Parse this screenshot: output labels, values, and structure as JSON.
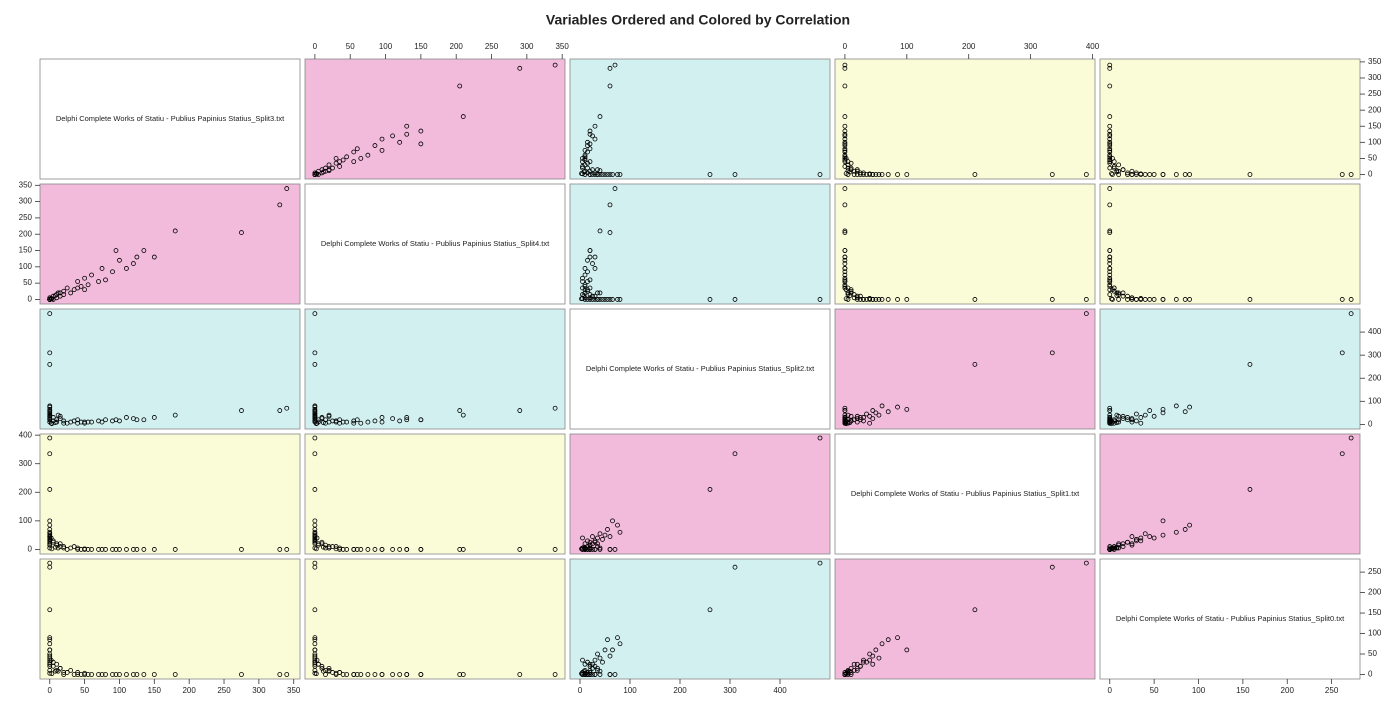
{
  "chart_data": {
    "type": "scatter-matrix",
    "title": "Variables Ordered and Colored by Correlation",
    "variables": [
      {
        "name": "Delphi Complete Works of Statiu - Publius Papinius Statius_Split3.txt",
        "lim": [
          -14,
          359
        ],
        "ticks": [
          0,
          50,
          100,
          150,
          200,
          250,
          300,
          350
        ],
        "values": [
          0,
          0,
          0,
          340,
          330,
          275,
          180,
          150,
          135,
          125,
          120,
          110,
          100,
          95,
          90,
          80,
          75,
          70,
          60,
          55,
          50,
          45,
          40,
          0,
          0,
          0,
          0,
          0,
          0,
          0,
          0,
          0,
          0,
          0,
          0,
          20,
          30,
          10,
          25,
          15,
          5,
          35,
          10,
          20,
          5,
          0,
          15,
          40,
          8,
          2,
          0,
          3,
          50,
          0,
          12
        ]
      },
      {
        "name": "Delphi Complete Works of Statiu - Publius Papinius Statius_Split4.txt",
        "lim": [
          -14,
          354
        ],
        "ticks": [
          0,
          50,
          100,
          150,
          200,
          250,
          300,
          350
        ],
        "values": [
          0,
          0,
          0,
          340,
          290,
          205,
          210,
          130,
          150,
          130,
          110,
          95,
          120,
          150,
          85,
          60,
          95,
          55,
          75,
          45,
          65,
          40,
          55,
          0,
          0,
          0,
          0,
          0,
          0,
          0,
          0,
          0,
          0,
          0,
          0,
          25,
          20,
          15,
          35,
          10,
          10,
          30,
          5,
          15,
          0,
          5,
          20,
          35,
          12,
          3,
          0,
          2,
          30,
          0,
          20
        ]
      },
      {
        "name": "Delphi Complete Works of Statiu - Publius Papinius Statius_Split2.txt",
        "lim": [
          -20,
          500
        ],
        "ticks": [
          0,
          100,
          200,
          300,
          400
        ],
        "values": [
          480,
          310,
          260,
          70,
          60,
          60,
          40,
          30,
          20,
          20,
          25,
          30,
          15,
          20,
          15,
          20,
          10,
          15,
          10,
          10,
          5,
          10,
          5,
          75,
          65,
          80,
          55,
          50,
          60,
          40,
          35,
          45,
          30,
          25,
          20,
          15,
          10,
          20,
          5,
          25,
          30,
          15,
          10,
          5,
          15,
          20,
          35,
          20,
          8,
          5,
          10,
          3,
          10,
          35,
          40
        ]
      },
      {
        "name": "Delphi Complete Works of Statiu - Publius Papinius Statius_Split1.txt",
        "lim": [
          -16,
          404
        ],
        "ticks": [
          0,
          100,
          200,
          300,
          400
        ],
        "values": [
          390,
          335,
          210,
          0,
          0,
          0,
          0,
          0,
          0,
          0,
          0,
          0,
          0,
          0,
          0,
          0,
          0,
          0,
          0,
          0,
          0,
          0,
          0,
          85,
          100,
          60,
          70,
          50,
          45,
          55,
          40,
          35,
          30,
          45,
          25,
          10,
          5,
          15,
          0,
          20,
          25,
          10,
          20,
          5,
          30,
          15,
          10,
          5,
          8,
          40,
          5,
          2,
          2,
          20,
          5
        ]
      },
      {
        "name": "Delphi Complete Works of Statiu - Publius Papinius Statius_Split0.txt",
        "lim": [
          -11,
          282
        ],
        "ticks": [
          0,
          50,
          100,
          150,
          200,
          250
        ],
        "values": [
          272,
          262,
          158,
          0,
          0,
          0,
          0,
          0,
          0,
          0,
          0,
          0,
          0,
          0,
          0,
          0,
          0,
          0,
          0,
          0,
          0,
          0,
          0,
          90,
          60,
          75,
          85,
          60,
          45,
          40,
          50,
          30,
          35,
          25,
          20,
          5,
          10,
          10,
          5,
          15,
          20,
          0,
          25,
          0,
          30,
          25,
          15,
          5,
          8,
          35,
          3,
          2,
          3,
          10,
          8
        ]
      }
    ],
    "panel_colors": [
      [
        "#ffffff",
        "#f2bbdc",
        "#d2f0f0",
        "#fafcd8",
        "#fafcd8"
      ],
      [
        "#f2bbdc",
        "#ffffff",
        "#d2f0f0",
        "#fafcd8",
        "#fafcd8"
      ],
      [
        "#d2f0f0",
        "#d2f0f0",
        "#ffffff",
        "#f2bbdc",
        "#d2f0f0"
      ],
      [
        "#fafcd8",
        "#fafcd8",
        "#f2bbdc",
        "#ffffff",
        "#f2bbdc"
      ],
      [
        "#fafcd8",
        "#fafcd8",
        "#d2f0f0",
        "#f2bbdc",
        "#ffffff"
      ]
    ]
  }
}
